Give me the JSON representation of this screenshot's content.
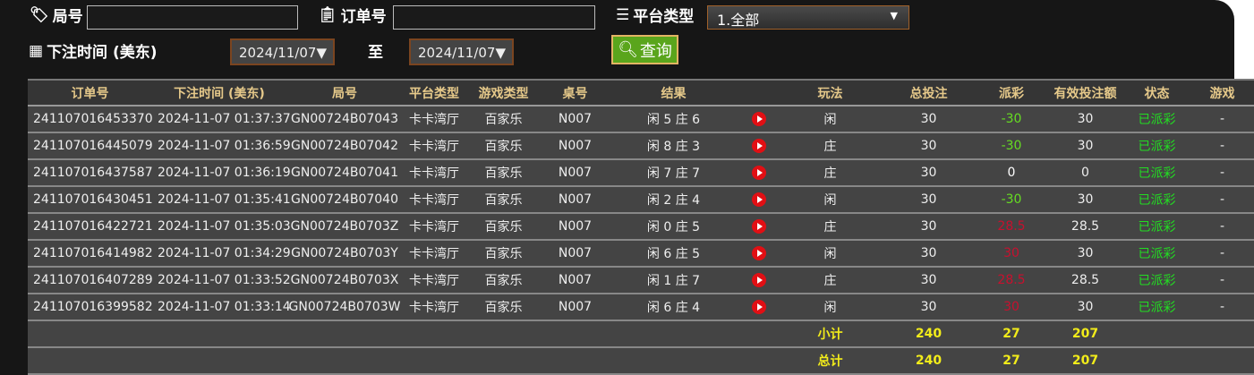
{
  "filters": {
    "round_label": "局号",
    "round_value": "",
    "order_label": "订单号",
    "order_value": "",
    "platform_label": "平台类型",
    "platform_value": "1.全部",
    "time_label": "下注时间 (美东)",
    "date_from": "2024/11/07▼",
    "to_label": "至",
    "date_to": "2024/11/07▼",
    "query_label": "查询"
  },
  "table": {
    "headers": [
      "订单号",
      "下注时间 (美东)",
      "局号",
      "平台类型",
      "游戏类型",
      "桌号",
      "结果",
      "",
      "玩法",
      "总投注",
      "派彩",
      "有效投注额",
      "状态",
      "游戏"
    ],
    "rows": [
      [
        "241107016453370",
        "2024-11-07 01:37:37",
        "GN00724B07043",
        "卡卡湾厅",
        "百家乐",
        "N007",
        "闲 5 庄 6",
        "闲",
        "30",
        "-30",
        "30",
        "已派彩",
        "-"
      ],
      [
        "241107016445079",
        "2024-11-07 01:36:59",
        "GN00724B07042",
        "卡卡湾厅",
        "百家乐",
        "N007",
        "闲 8 庄 3",
        "庄",
        "30",
        "-30",
        "30",
        "已派彩",
        "-"
      ],
      [
        "241107016437587",
        "2024-11-07 01:36:19",
        "GN00724B07041",
        "卡卡湾厅",
        "百家乐",
        "N007",
        "闲 7 庄 7",
        "庄",
        "30",
        "0",
        "0",
        "已派彩",
        "-"
      ],
      [
        "241107016430451",
        "2024-11-07 01:35:41",
        "GN00724B07040",
        "卡卡湾厅",
        "百家乐",
        "N007",
        "闲 2 庄 4",
        "闲",
        "30",
        "-30",
        "30",
        "已派彩",
        "-"
      ],
      [
        "241107016422721",
        "2024-11-07 01:35:03",
        "GN00724B0703Z",
        "卡卡湾厅",
        "百家乐",
        "N007",
        "闲 0 庄 5",
        "庄",
        "30",
        "28.5",
        "28.5",
        "已派彩",
        "-"
      ],
      [
        "241107016414982",
        "2024-11-07 01:34:29",
        "GN00724B0703Y",
        "卡卡湾厅",
        "百家乐",
        "N007",
        "闲 6 庄 5",
        "闲",
        "30",
        "30",
        "30",
        "已派彩",
        "-"
      ],
      [
        "241107016407289",
        "2024-11-07 01:33:52",
        "GN00724B0703X",
        "卡卡湾厅",
        "百家乐",
        "N007",
        "闲 1 庄 7",
        "庄",
        "30",
        "28.5",
        "28.5",
        "已派彩",
        "-"
      ],
      [
        "241107016399582",
        "2024-11-07 01:33:14",
        "GN00724B0703W",
        "卡卡湾厅",
        "百家乐",
        "N007",
        "闲 6 庄 4",
        "闲",
        "30",
        "30",
        "30",
        "已派彩",
        "-"
      ]
    ],
    "subtotal": {
      "label": "小计",
      "bet": "240",
      "payout": "27",
      "valid": "207"
    },
    "total": {
      "label": "总计",
      "bet": "240",
      "payout": "27",
      "valid": "207"
    }
  },
  "colors": {
    "negative": "#66dd22",
    "positive": "#c8102e",
    "zero": "#ffffff",
    "status": "#22dd22",
    "summary": "#f2ec1a",
    "header": "#e6c98a",
    "query": "#5aa51c"
  }
}
